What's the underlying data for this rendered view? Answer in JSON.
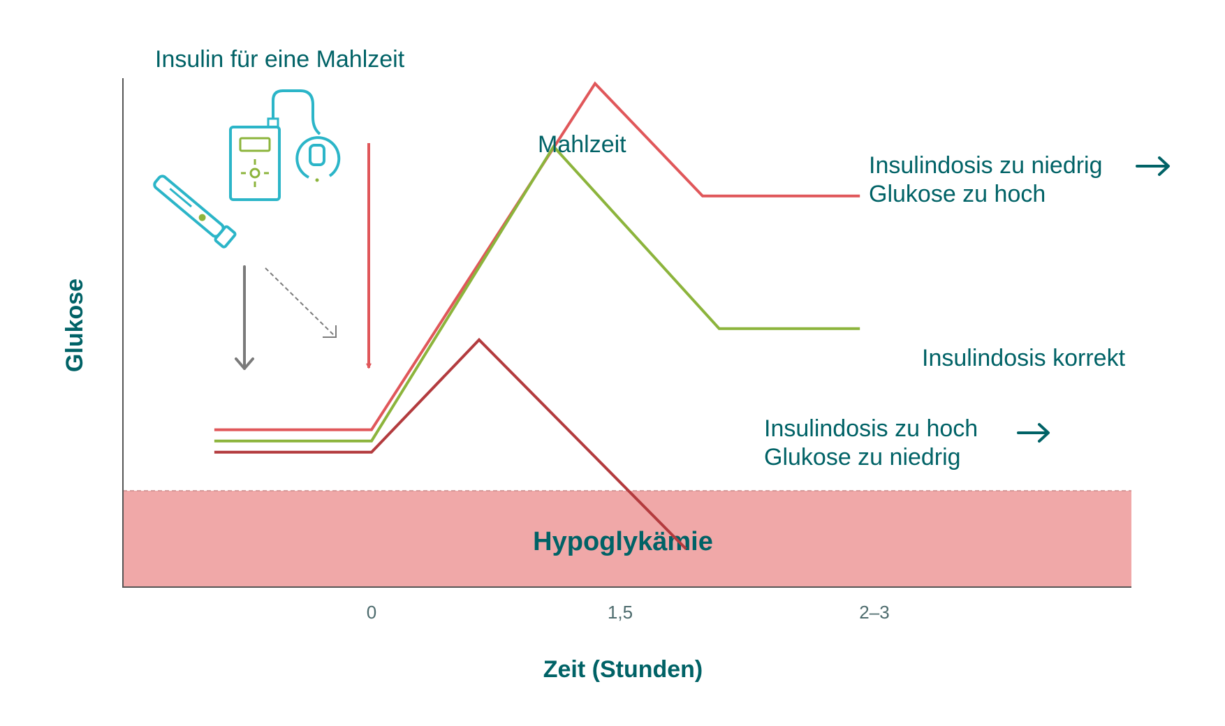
{
  "chart_data": {
    "type": "line",
    "title": "",
    "xlabel": "Zeit (Stunden)",
    "ylabel": "Glukose",
    "x_ticks": [
      "0",
      "1,5",
      "2–3"
    ],
    "zone_label": "Hypoglykämie",
    "annotations": {
      "insulin": "Insulin für eine Mahlzeit",
      "meal": "Mahlzeit"
    },
    "colors": {
      "too_low_dose": "#e0575a",
      "correct_dose": "#8cb43c",
      "too_high_dose": "#b33b3e",
      "zone": "#f0a8a8",
      "text": "#006266",
      "device": "#2bb5c8",
      "device_accent": "#8cb43c",
      "axis": "#555555"
    },
    "icons": [
      "insulin-pen-icon",
      "insulin-pump-icon",
      "arrow-right-icon"
    ],
    "series": [
      {
        "label_lines": [
          "Insulindosis zu niedrig",
          "Glukose zu hoch"
        ],
        "color": "#e0575a",
        "has_arrow": true,
        "points": [
          [
            -0.95,
            0.7
          ],
          [
            0.0,
            0.7
          ],
          [
            1.35,
            2.24
          ],
          [
            2.0,
            1.74
          ],
          [
            2.95,
            1.74
          ]
        ]
      },
      {
        "label_lines": [
          "Insulindosis korrekt"
        ],
        "color": "#8cb43c",
        "has_arrow": false,
        "points": [
          [
            -0.95,
            0.65
          ],
          [
            0.0,
            0.65
          ],
          [
            1.1,
            1.96
          ],
          [
            2.1,
            1.15
          ],
          [
            2.95,
            1.15
          ]
        ]
      },
      {
        "label_lines": [
          "Insulindosis zu hoch",
          "Glukose zu niedrig"
        ],
        "color": "#b33b3e",
        "has_arrow": true,
        "points": [
          [
            -0.95,
            0.6
          ],
          [
            0.0,
            0.6
          ],
          [
            0.65,
            1.1
          ],
          [
            1.9,
            0.17
          ]
        ]
      }
    ]
  }
}
